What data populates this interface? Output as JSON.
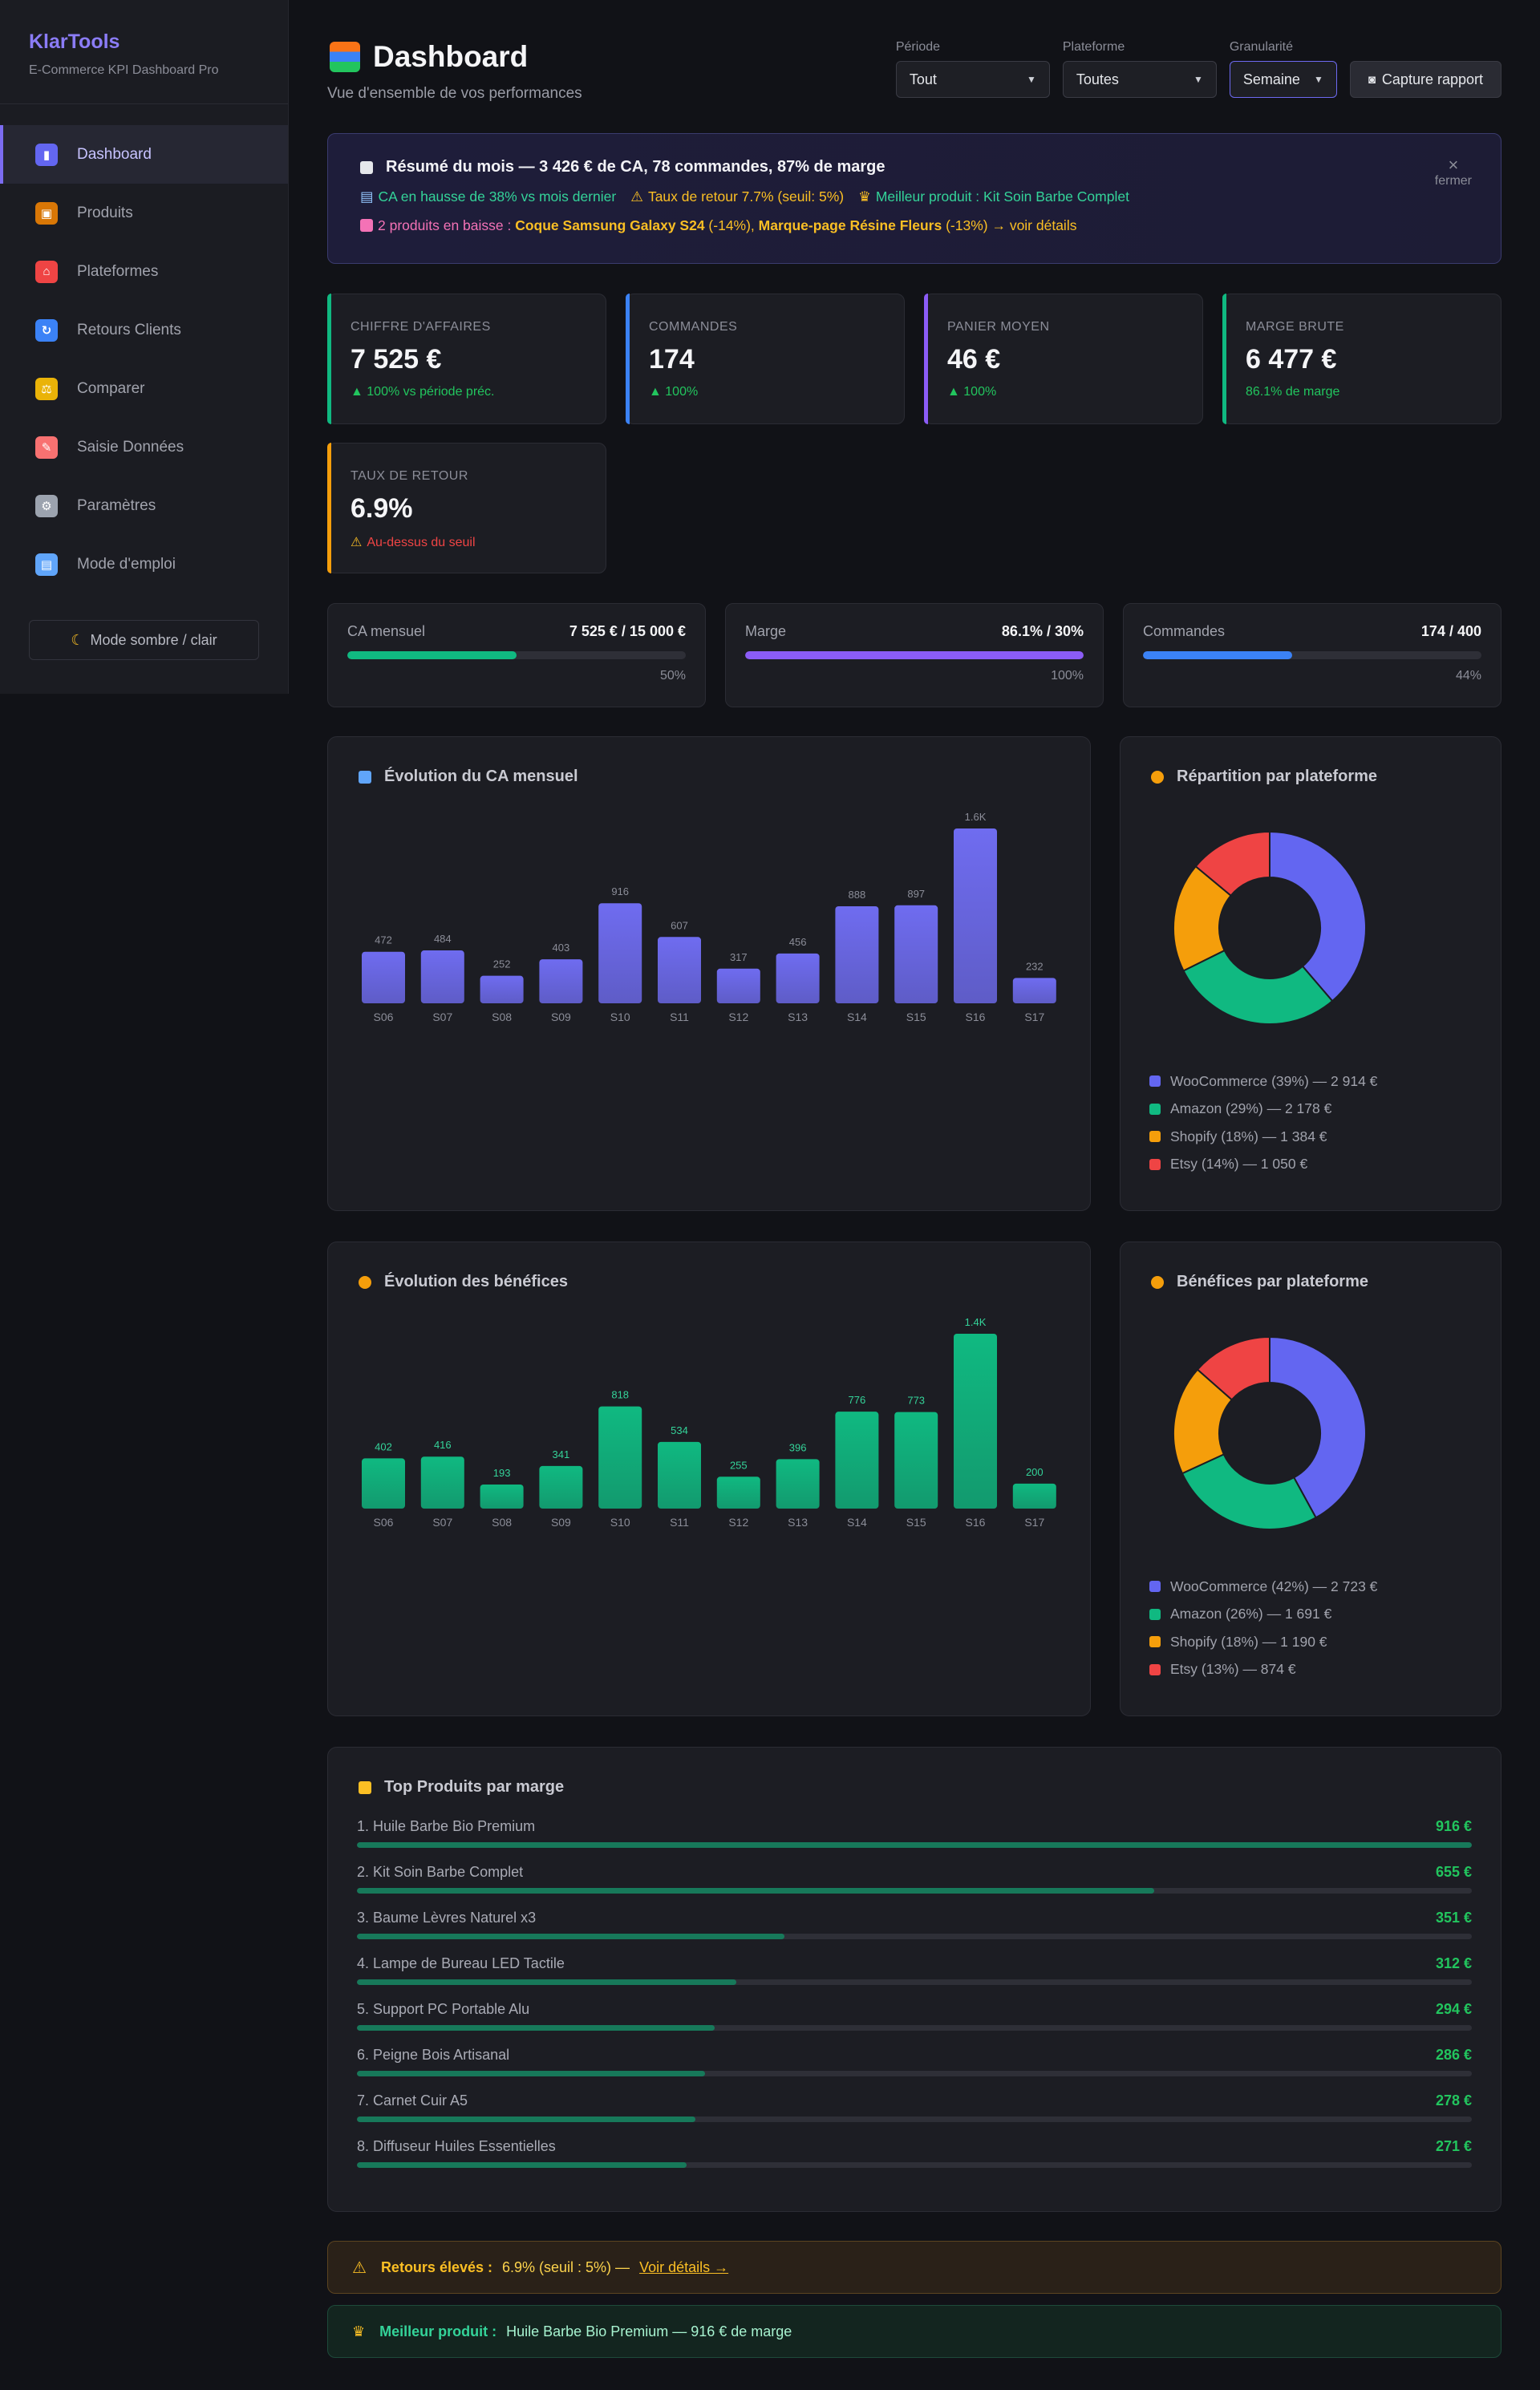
{
  "sidebar": {
    "brand": "KlarTools",
    "subtitle": "E-Commerce KPI Dashboard Pro",
    "items": [
      {
        "label": "Dashboard",
        "icon": "bar-chart-icon",
        "active": true
      },
      {
        "label": "Produits",
        "icon": "package-icon"
      },
      {
        "label": "Plateformes",
        "icon": "store-icon"
      },
      {
        "label": "Retours Clients",
        "icon": "refresh-icon"
      },
      {
        "label": "Comparer",
        "icon": "scale-icon"
      },
      {
        "label": "Saisie Données",
        "icon": "document-edit-icon"
      },
      {
        "label": "Paramètres",
        "icon": "gear-icon"
      },
      {
        "label": "Mode d'emploi",
        "icon": "book-icon"
      }
    ],
    "mode_toggle": "Mode sombre / clair"
  },
  "header": {
    "title": "Dashboard",
    "subtitle": "Vue d'ensemble de vos performances",
    "filters": [
      {
        "label": "Période",
        "value": "Tout"
      },
      {
        "label": "Plateforme",
        "value": "Toutes"
      },
      {
        "label": "Granularité",
        "value": "Semaine"
      }
    ],
    "capture_label": "Capture rapport"
  },
  "summary": {
    "title": "Résumé du mois — 3 426 € de CA, 78 commandes, 87% de marge",
    "line1": [
      {
        "text": "CA en hausse de 38% vs mois dernier",
        "color": "#34d399"
      },
      {
        "text": "Taux de retour 7.7% (seuil: 5%)",
        "color": "#fbbf24"
      },
      {
        "text": "Meilleur produit : Kit Soin Barbe Complet",
        "color": "#34d399"
      }
    ],
    "line2_prefix": "2 produits en baisse : ",
    "line2_p1": "Coque Samsung Galaxy S24",
    "line2_p1_pct": " (-14%), ",
    "line2_p2": "Marque-page Résine Fleurs",
    "line2_suffix": " (-13%) → voir détails",
    "close_label": "fermer"
  },
  "kpis": [
    {
      "label": "CHIFFRE D'AFFAIRES",
      "value": "7 525 €",
      "delta": "▲ 100% vs période préc.",
      "delta_color": "#22c55e",
      "accent": "green"
    },
    {
      "label": "COMMANDES",
      "value": "174",
      "delta": "▲ 100%",
      "delta_color": "#22c55e",
      "accent": "blue"
    },
    {
      "label": "PANIER MOYEN",
      "value": "46 €",
      "delta": "▲ 100%",
      "delta_color": "#22c55e",
      "accent": "purple"
    },
    {
      "label": "MARGE BRUTE",
      "value": "6 477 €",
      "delta": "86.1% de marge",
      "delta_color": "#22c55e",
      "accent": "green"
    },
    {
      "label": "TAUX DE RETOUR",
      "value": "6.9%",
      "delta": "Au-dessus du seuil",
      "delta_color": "#ef4444",
      "accent": "orange"
    }
  ],
  "progress": [
    {
      "label": "CA mensuel",
      "value": "7 525 € / 15 000 €",
      "pct_label": "50%",
      "fraction": 0.5,
      "color": "#10b981"
    },
    {
      "label": "Marge",
      "value": "86.1% / 30%",
      "pct_label": "100%",
      "fraction": 1.0,
      "color": "#8b5cf6"
    },
    {
      "label": "Commandes",
      "value": "174 / 400",
      "pct_label": "44%",
      "fraction": 0.44,
      "color": "#3b82f6"
    }
  ],
  "charts": {
    "ca_title": "Évolution du CA mensuel",
    "profit_title": "Évolution des bénéfices",
    "ca_split_title": "Répartition par plateforme",
    "profit_split_title": "Bénéfices par plateforme"
  },
  "chart_data": [
    {
      "type": "bar",
      "title": "Évolution du CA mensuel",
      "categories": [
        "S06",
        "S07",
        "S08",
        "S09",
        "S10",
        "S11",
        "S12",
        "S13",
        "S14",
        "S15",
        "S16",
        "S17"
      ],
      "values": [
        472,
        484,
        252,
        403,
        916,
        607,
        317,
        456,
        888,
        897,
        1600,
        232
      ],
      "labels": [
        "472",
        "484",
        "252",
        "403",
        "916",
        "607",
        "317",
        "456",
        "888",
        "897",
        "1.6K",
        "232"
      ],
      "ylim": [
        0,
        1600
      ],
      "color": "#6f6cf0"
    },
    {
      "type": "pie",
      "title": "Répartition par plateforme",
      "categories": [
        "WooCommerce",
        "Amazon",
        "Shopify",
        "Etsy"
      ],
      "values": [
        2914,
        2178,
        1384,
        1050
      ],
      "legend": [
        "WooCommerce (39%) — 2 914 €",
        "Amazon (29%) — 2 178 €",
        "Shopify (18%) — 1 384 €",
        "Etsy (14%) — 1 050 €"
      ],
      "colors": [
        "#6366f1",
        "#10b981",
        "#f59e0b",
        "#ef4444"
      ]
    },
    {
      "type": "bar",
      "title": "Évolution des bénéfices",
      "categories": [
        "S06",
        "S07",
        "S08",
        "S09",
        "S10",
        "S11",
        "S12",
        "S13",
        "S14",
        "S15",
        "S16",
        "S17"
      ],
      "values": [
        402,
        416,
        193,
        341,
        818,
        534,
        255,
        396,
        776,
        773,
        1400,
        200
      ],
      "labels": [
        "402",
        "416",
        "193",
        "341",
        "818",
        "534",
        "255",
        "396",
        "776",
        "773",
        "1.4K",
        "200"
      ],
      "ylim": [
        0,
        1400
      ],
      "color": "#10b981"
    },
    {
      "type": "pie",
      "title": "Bénéfices par plateforme",
      "categories": [
        "WooCommerce",
        "Amazon",
        "Shopify",
        "Etsy"
      ],
      "values": [
        2723,
        1691,
        1190,
        874
      ],
      "legend": [
        "WooCommerce (42%) — 2 723 €",
        "Amazon (26%) — 1 691 €",
        "Shopify (18%) — 1 190 €",
        "Etsy (13%) — 874 €"
      ],
      "colors": [
        "#6366f1",
        "#10b981",
        "#f59e0b",
        "#ef4444"
      ]
    }
  ],
  "top_products": {
    "title": "Top Produits par marge",
    "max": 916,
    "items": [
      {
        "name": "1. Huile Barbe Bio Premium",
        "value": 916,
        "label": "916 €"
      },
      {
        "name": "2. Kit Soin Barbe Complet",
        "value": 655,
        "label": "655 €"
      },
      {
        "name": "3. Baume Lèvres Naturel x3",
        "value": 351,
        "label": "351 €"
      },
      {
        "name": "4. Lampe de Bureau LED Tactile",
        "value": 312,
        "label": "312 €"
      },
      {
        "name": "5. Support PC Portable Alu",
        "value": 294,
        "label": "294 €"
      },
      {
        "name": "6. Peigne Bois Artisanal",
        "value": 286,
        "label": "286 €"
      },
      {
        "name": "7. Carnet Cuir A5",
        "value": 278,
        "label": "278 €"
      },
      {
        "name": "8. Diffuseur Huiles Essentielles",
        "value": 271,
        "label": "271 €"
      }
    ]
  },
  "alerts": {
    "returns_label": "Retours élevés :",
    "returns_text": "6.9% (seuil : 5%) —",
    "returns_link": "Voir détails →",
    "best_label": "Meilleur produit :",
    "best_text": "Huile Barbe Bio Premium — 916 € de marge"
  }
}
